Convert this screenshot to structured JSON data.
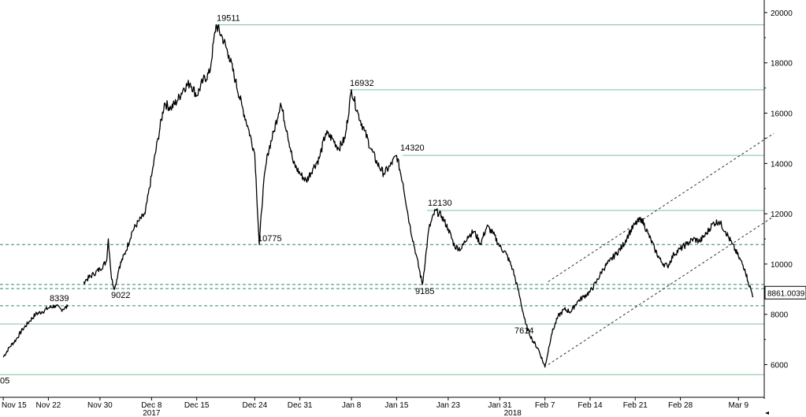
{
  "chart_data": {
    "type": "line",
    "title": "",
    "xlabel": "",
    "ylabel": "",
    "y_axis_side": "right",
    "ylim": [
      4700,
      20500
    ],
    "y_ticks": [
      "6000",
      "8000",
      "10000",
      "12000",
      "14000",
      "16000",
      "18000",
      "20000"
    ],
    "x_ticks": [
      {
        "label": "Nov 15",
        "day": 0
      },
      {
        "label": "Nov 22",
        "day": 7
      },
      {
        "label": "Nov 30",
        "day": 15
      },
      {
        "label": "Dec 8",
        "day": 23
      },
      {
        "label": "Dec 15",
        "day": 30
      },
      {
        "label": "Dec 24",
        "day": 39
      },
      {
        "label": "Dec 31",
        "day": 46
      },
      {
        "label": "Jan 8",
        "day": 54
      },
      {
        "label": "Jan 15",
        "day": 61
      },
      {
        "label": "Jan 23",
        "day": 69
      },
      {
        "label": "Jan 31",
        "day": 77
      },
      {
        "label": "Feb 7",
        "day": 84
      },
      {
        "label": "Feb 14",
        "day": 91
      },
      {
        "label": "Feb 21",
        "day": 98
      },
      {
        "label": "Feb 28",
        "day": 105
      },
      {
        "label": "Mar 9",
        "day": 114
      }
    ],
    "year_labels": [
      {
        "label": "2017",
        "day": 23
      },
      {
        "label": "2018",
        "day": 79
      }
    ],
    "x_range_days": [
      -0.5,
      118
    ],
    "series": [
      {
        "name": "",
        "segments": [
          [
            [
              0,
              6300
            ],
            [
              1,
              6700
            ],
            [
              2,
              7000
            ],
            [
              3,
              7400
            ],
            [
              4,
              7700
            ],
            [
              5,
              8000
            ],
            [
              6,
              8100
            ],
            [
              7,
              8250
            ],
            [
              8,
              8339
            ],
            [
              9,
              8200
            ],
            [
              10,
              8300
            ]
          ],
          [
            [
              12.5,
              9300
            ],
            [
              13,
              9400
            ],
            [
              14,
              9600
            ],
            [
              15,
              9800
            ],
            [
              16,
              10100
            ],
            [
              16.3,
              11000
            ],
            [
              16.8,
              9400
            ],
            [
              17.3,
              9022
            ],
            [
              18,
              9900
            ],
            [
              19,
              10500
            ],
            [
              20,
              11300
            ],
            [
              21,
              11700
            ],
            [
              22,
              12000
            ],
            [
              23,
              13500
            ],
            [
              24,
              15000
            ],
            [
              25,
              16400
            ],
            [
              26,
              16200
            ],
            [
              27,
              16500
            ],
            [
              28,
              17000
            ],
            [
              29,
              17200
            ],
            [
              30,
              16700
            ],
            [
              31,
              17300
            ],
            [
              32,
              17600
            ],
            [
              33,
              19511
            ],
            [
              34,
              19000
            ],
            [
              35,
              18300
            ],
            [
              36,
              17300
            ],
            [
              37,
              16300
            ],
            [
              38,
              15400
            ],
            [
              39,
              14400
            ],
            [
              39.7,
              10775
            ],
            [
              40.3,
              13000
            ],
            [
              41,
              14400
            ],
            [
              42,
              15300
            ],
            [
              43,
              16400
            ],
            [
              44,
              15300
            ],
            [
              45,
              14000
            ],
            [
              46,
              13600
            ],
            [
              47,
              13300
            ],
            [
              48,
              13800
            ],
            [
              49,
              14200
            ],
            [
              50,
              15200
            ],
            [
              51,
              15000
            ],
            [
              52,
              14600
            ],
            [
              53,
              15000
            ],
            [
              54,
              16932
            ],
            [
              55,
              16000
            ],
            [
              56,
              15300
            ],
            [
              57,
              14600
            ],
            [
              58,
              14000
            ],
            [
              59,
              13600
            ],
            [
              60,
              13900
            ],
            [
              61,
              14320
            ],
            [
              62,
              13200
            ],
            [
              63,
              11600
            ],
            [
              64,
              10400
            ],
            [
              65,
              9185
            ],
            [
              66,
              11400
            ],
            [
              67,
              12130
            ],
            [
              68,
              11900
            ],
            [
              69,
              11400
            ],
            [
              70,
              10700
            ],
            [
              71,
              10600
            ],
            [
              72,
              11100
            ],
            [
              73,
              11300
            ],
            [
              74,
              10800
            ],
            [
              75,
              11500
            ],
            [
              76,
              11200
            ],
            [
              77,
              10700
            ],
            [
              78,
              10400
            ],
            [
              79,
              9800
            ],
            [
              80,
              8800
            ],
            [
              81,
              7614
            ],
            [
              82,
              7000
            ],
            [
              83,
              6600
            ],
            [
              84,
              5900
            ],
            [
              85,
              7200
            ],
            [
              86,
              7900
            ],
            [
              87,
              8200
            ],
            [
              88,
              8100
            ],
            [
              89,
              8500
            ],
            [
              90,
              8700
            ],
            [
              91,
              8900
            ],
            [
              92,
              9300
            ],
            [
              93,
              9800
            ],
            [
              94,
              10100
            ],
            [
              95,
              10400
            ],
            [
              96,
              10700
            ],
            [
              97,
              11200
            ],
            [
              98,
              11600
            ],
            [
              99,
              11800
            ],
            [
              100,
              11200
            ],
            [
              101,
              10600
            ],
            [
              102,
              10100
            ],
            [
              103,
              9900
            ],
            [
              104,
              10400
            ],
            [
              105,
              10600
            ],
            [
              106,
              10800
            ],
            [
              107,
              11000
            ],
            [
              108,
              10900
            ],
            [
              109,
              11200
            ],
            [
              110,
              11600
            ],
            [
              111,
              11700
            ],
            [
              112,
              11300
            ],
            [
              113,
              10800
            ],
            [
              114,
              10300
            ],
            [
              115,
              9800
            ],
            [
              115.5,
              9300
            ],
            [
              116.3,
              8700
            ]
          ]
        ]
      }
    ],
    "horizontal_levels": [
      {
        "value": 19511,
        "style": "solid",
        "label": "19511"
      },
      {
        "value": 16932,
        "style": "solid",
        "label": "16932"
      },
      {
        "value": 14320,
        "style": "solid",
        "label": "14320"
      },
      {
        "value": 12130,
        "style": "solid",
        "label": "12130"
      },
      {
        "value": 10775,
        "style": "dashed",
        "label": "10775"
      },
      {
        "value": 9185,
        "style": "dashed",
        "label": "9185"
      },
      {
        "value": 9022,
        "style": "dashed",
        "label": "9022"
      },
      {
        "value": 8339,
        "style": "dashed",
        "label": "8339"
      },
      {
        "value": 7614,
        "style": "solid",
        "label": "7614"
      },
      {
        "value": 5600,
        "style": "solid",
        "label": "05"
      }
    ],
    "trend_channel": [
      {
        "from": [
          84.5,
          9300
        ],
        "to": [
          119.5,
          15200
        ]
      },
      {
        "from": [
          84.5,
          6000
        ],
        "to": [
          119.5,
          11900
        ]
      }
    ],
    "last_value_label": "8861.0039",
    "last_value": 8861
  }
}
